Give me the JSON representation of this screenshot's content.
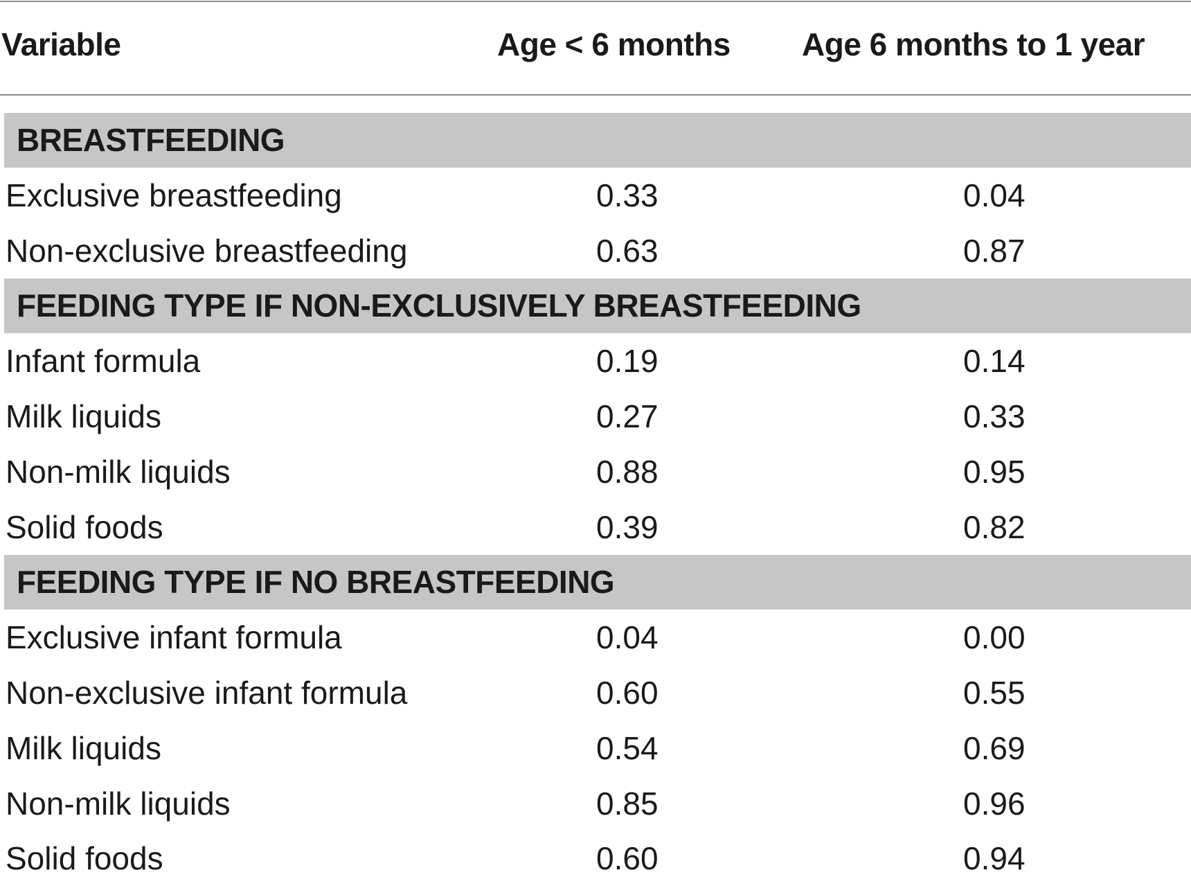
{
  "table": {
    "columns": [
      "Variable",
      "Age < 6 months",
      "Age 6 months to 1 year"
    ],
    "sections": [
      {
        "title": "BREASTFEEDING",
        "rows": [
          [
            "Exclusive breastfeeding",
            "0.33",
            "0.04"
          ],
          [
            "Non-exclusive breastfeeding",
            "0.63",
            "0.87"
          ]
        ]
      },
      {
        "title": "FEEDING TYPE IF NON-EXCLUSIVELY BREASTFEEDING",
        "rows": [
          [
            "Infant formula",
            "0.19",
            "0.14"
          ],
          [
            "Milk liquids",
            "0.27",
            "0.33"
          ],
          [
            "Non-milk liquids",
            "0.88",
            "0.95"
          ],
          [
            "Solid foods",
            "0.39",
            "0.82"
          ]
        ]
      },
      {
        "title": "FEEDING TYPE IF NO BREASTFEEDING",
        "rows": [
          [
            "Exclusive infant formula",
            "0.04",
            "0.00"
          ],
          [
            "Non-exclusive infant formula",
            "0.60",
            "0.55"
          ],
          [
            "Milk liquids",
            "0.54",
            "0.69"
          ],
          [
            "Non-milk liquids",
            "0.85",
            "0.96"
          ],
          [
            "Solid foods",
            "0.60",
            "0.94"
          ]
        ]
      }
    ]
  }
}
